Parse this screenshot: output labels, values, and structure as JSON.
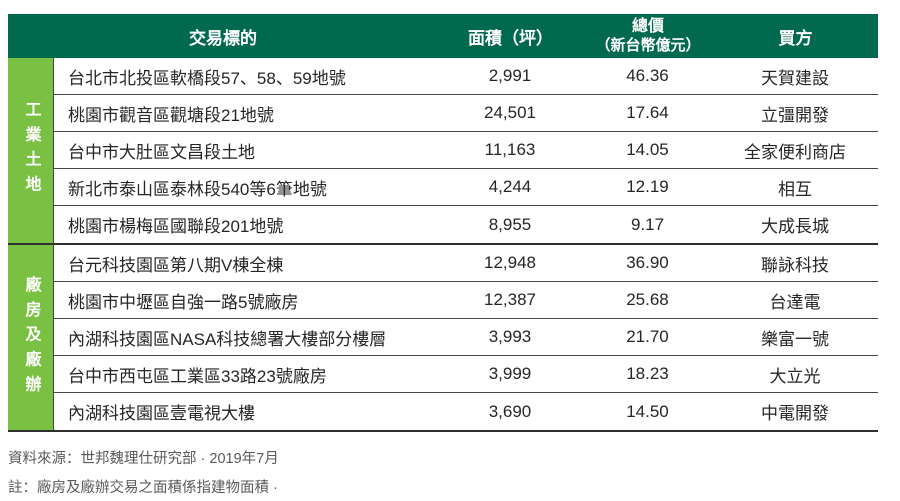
{
  "colors": {
    "header_green": "#016a4e",
    "sidebar_green": "#7ac143",
    "line_dark": "#2f2f2f",
    "text_dark": "#262626",
    "footer_gray": "#595959"
  },
  "table": {
    "headers": {
      "target": "交易標的",
      "area": "面積（坪）",
      "price_line1": "總價",
      "price_line2": "（新台幣億元）",
      "buyer": "買方"
    },
    "groups": [
      {
        "label": "工業土地",
        "rows": [
          {
            "target": "台北市北投區軟橋段57、58、59地號",
            "area": "2,991",
            "price": "46.36",
            "buyer": "天賀建設"
          },
          {
            "target": "桃園市觀音區觀塘段21地號",
            "area": "24,501",
            "price": "17.64",
            "buyer": "立彊開發"
          },
          {
            "target": "台中市大肚區文昌段土地",
            "area": "11,163",
            "price": "14.05",
            "buyer": "全家便利商店"
          },
          {
            "target": "新北市泰山區泰林段540等6筆地號",
            "area": "4,244",
            "price": "12.19",
            "buyer": "相互"
          },
          {
            "target": "桃園市楊梅區國聯段201地號",
            "area": "8,955",
            "price": "9.17",
            "buyer": "大成長城"
          }
        ]
      },
      {
        "label": "廠房及廠辦",
        "rows": [
          {
            "target": "台元科技園區第八期V棟全棟",
            "area": "12,948",
            "price": "36.90",
            "buyer": "聯詠科技"
          },
          {
            "target": "桃園市中壢區自強一路5號廠房",
            "area": "12,387",
            "price": "25.68",
            "buyer": "台達電"
          },
          {
            "target": "內湖科技園區NASA科技總署大樓部分樓層",
            "area": "3,993",
            "price": "21.70",
            "buyer": "樂富一號"
          },
          {
            "target": "台中市西屯區工業區33路23號廠房",
            "area": "3,999",
            "price": "18.23",
            "buyer": "大立光"
          },
          {
            "target": "內湖科技園區壹電視大樓",
            "area": "3,690",
            "price": "14.50",
            "buyer": "中電開發"
          }
        ]
      }
    ]
  },
  "footer": {
    "source": "資料來源：世邦魏理仕研究部 · 2019年7月",
    "note": "註：廠房及廠辦交易之面積係指建物面積 ·"
  }
}
